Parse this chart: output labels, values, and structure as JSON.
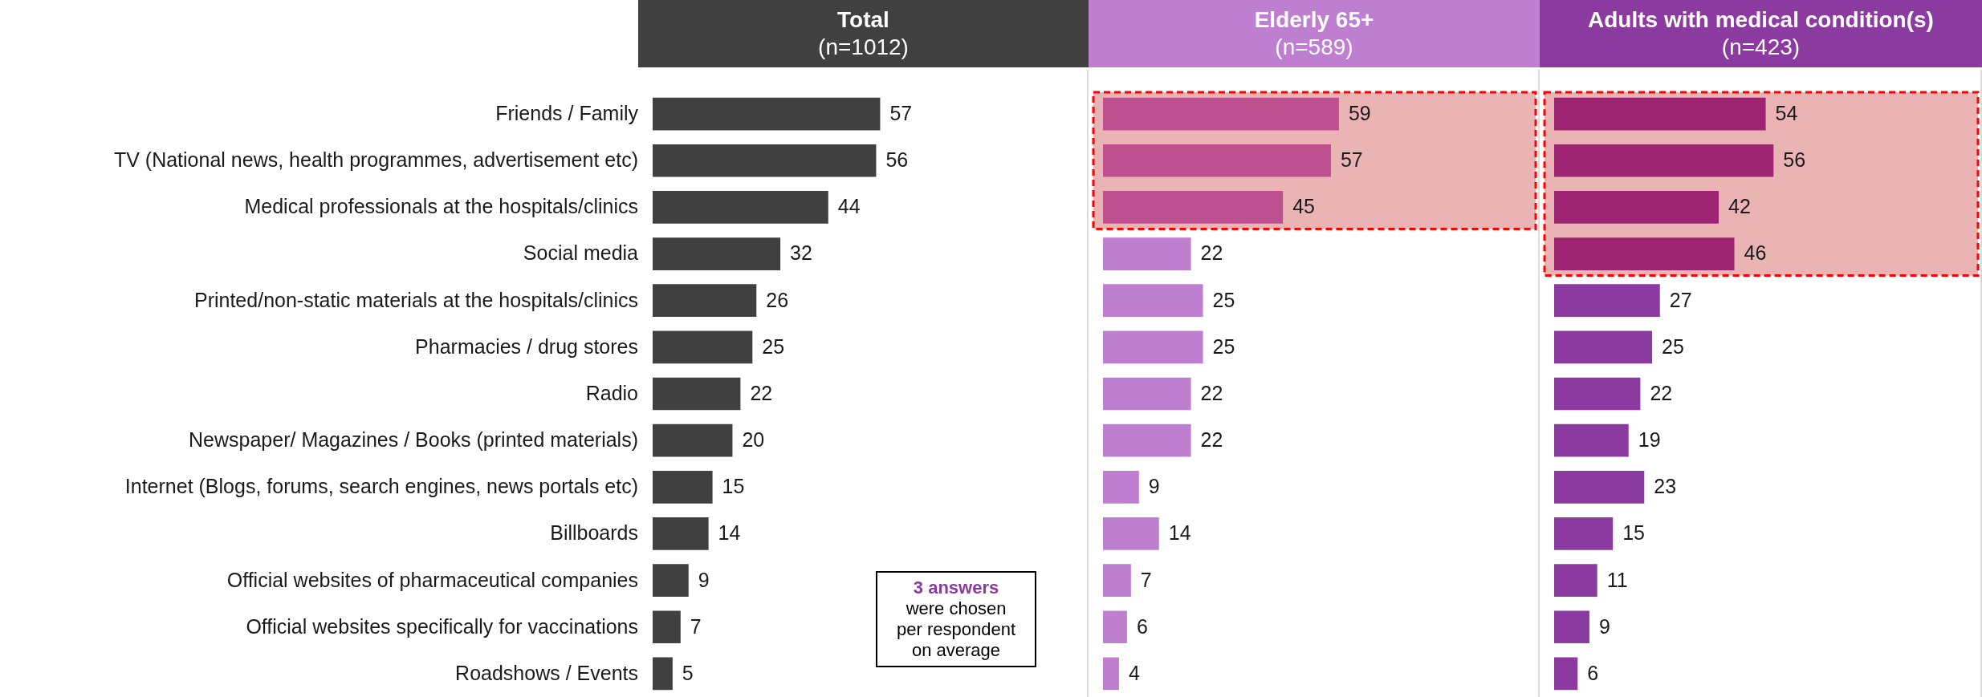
{
  "chart_data": [
    {
      "type": "bar",
      "orientation": "horizontal",
      "title": "Total",
      "subtitle": "(n=1012)",
      "categories": [
        "Friends / Family",
        "TV (National news, health programmes, advertisement etc)",
        "Medical professionals at the hospitals/clinics",
        "Social media",
        "Printed/non-static materials at the hospitals/clinics",
        "Pharmacies / drug stores",
        "Radio",
        "Newspaper/ Magazines / Books (printed materials)",
        "Internet (Blogs, forums, search engines, news portals etc)",
        "Billboards",
        "Official websites of pharmaceutical companies",
        "Official websites specifically for vaccinations",
        "Roadshows / Events"
      ],
      "values": [
        57,
        56,
        44,
        32,
        26,
        25,
        22,
        20,
        15,
        14,
        9,
        7,
        5
      ],
      "color": "#404040",
      "xlim": [
        0,
        109
      ],
      "data_labels": true,
      "tick_labels": "y",
      "annotations": [
        "3 answers were chosen per respondent on average"
      ]
    },
    {
      "type": "bar",
      "orientation": "horizontal",
      "title": "Elderly 65+",
      "subtitle": "(n=589)",
      "categories": [
        "Friends / Family",
        "TV (National news, health programmes, advertisement etc)",
        "Medical professionals at the hospitals/clinics",
        "Social media",
        "Printed/non-static materials at the hospitals/clinics",
        "Pharmacies / drug stores",
        "Radio",
        "Newspaper/ Magazines / Books (printed materials)",
        "Internet (Blogs, forums, search engines, news portals etc)",
        "Billboards",
        "Official websites of pharmaceutical companies",
        "Official websites specifically for vaccinations",
        "Roadshows / Events"
      ],
      "values": [
        59,
        57,
        45,
        22,
        25,
        25,
        22,
        22,
        9,
        14,
        7,
        6,
        4
      ],
      "colors": [
        "#bf5090",
        "#bf5090",
        "#bf5090",
        "#bf7fd0",
        "#bf7fd0",
        "#bf7fd0",
        "#bf7fd0",
        "#bf7fd0",
        "#bf7fd0",
        "#bf7fd0",
        "#bf7fd0",
        "#bf7fd0",
        "#bf7fd0"
      ],
      "xlim": [
        0,
        109
      ],
      "data_labels": true,
      "tick_labels": false,
      "bands": [
        {
          "axis": "y",
          "from": "Friends / Family",
          "to": "Medical professionals at the hospitals/clinics",
          "color": "#ebb4b4"
        }
      ]
    },
    {
      "type": "bar",
      "orientation": "horizontal",
      "title": "Adults with medical condition(s)",
      "subtitle": "(n=423)",
      "categories": [
        "Friends / Family",
        "TV (National news, health programmes, advertisement etc)",
        "Medical professionals at the hospitals/clinics",
        "Social media",
        "Printed/non-static materials at the hospitals/clinics",
        "Pharmacies / drug stores",
        "Radio",
        "Newspaper/ Magazines / Books (printed materials)",
        "Internet (Blogs, forums, search engines, news portals etc)",
        "Billboards",
        "Official websites of pharmaceutical companies",
        "Official websites specifically for vaccinations",
        "Roadshows / Events"
      ],
      "values": [
        54,
        56,
        42,
        46,
        27,
        25,
        22,
        19,
        23,
        15,
        11,
        9,
        6
      ],
      "colors": [
        "#9c2470",
        "#9c2470",
        "#9c2470",
        "#9c2470",
        "#8b3aa0",
        "#8b3aa0",
        "#8b3aa0",
        "#8b3aa0",
        "#8b3aa0",
        "#8b3aa0",
        "#8b3aa0",
        "#8b3aa0",
        "#8b3aa0"
      ],
      "xlim": [
        0,
        109
      ],
      "data_labels": true,
      "tick_labels": false,
      "bands": [
        {
          "axis": "y",
          "from": "Friends / Family",
          "to": "Social media",
          "color": "#ebb4b4"
        }
      ]
    }
  ]
}
